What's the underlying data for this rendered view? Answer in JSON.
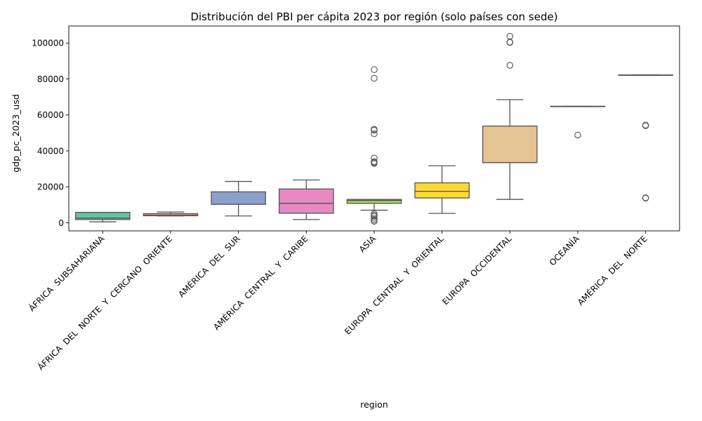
{
  "chart_data": {
    "type": "box",
    "title": "Distribución del PBI per cápita 2023 por región (solo países con sede)",
    "xlabel": "region",
    "ylabel": "gdp_pc_2023_usd",
    "ylim": [
      -4500,
      109500
    ],
    "yticks": [
      0,
      20000,
      40000,
      60000,
      80000,
      100000
    ],
    "ytick_labels": [
      "0",
      "20000",
      "40000",
      "60000",
      "80000",
      "100000"
    ],
    "grid": false,
    "legend": "none",
    "categories": [
      "ÁFRICA  SUBSAHARIANA",
      "ÁFRICA  DEL  NORTE  Y  CERCANO  ORIENTE",
      "AMÉRICA  DEL  SUR",
      "AMÉRICA  CENTRAL  Y  CARIBE",
      "ASIA",
      "EUROPA  CENTRAL  Y  ORIENTAL",
      "EUROPA  OCCIDENTAL",
      "OCEANÍA",
      "AMÉRICA  DEL  NORTE"
    ],
    "boxes": [
      {
        "whisker_low": 500,
        "q1": 1800,
        "median": 2600,
        "q3": 5800,
        "whisker_high": 5800,
        "outliers": [],
        "color": "#66c2a5"
      },
      {
        "whisker_low": 3800,
        "q1": 3900,
        "median": 4200,
        "q3": 5100,
        "whisker_high": 6000,
        "outliers": [],
        "color": "#fc8d62"
      },
      {
        "whisker_low": 3800,
        "q1": 10300,
        "median": 10300,
        "q3": 17200,
        "whisker_high": 23000,
        "outliers": [],
        "color": "#8da0cb"
      },
      {
        "whisker_low": 1800,
        "q1": 5300,
        "median": 10800,
        "q3": 18800,
        "whisker_high": 23800,
        "outliers": [],
        "color": "#e78ac3"
      },
      {
        "whisker_low": 7000,
        "q1": 10800,
        "median": 12400,
        "q3": 13000,
        "whisker_high": 13000,
        "outliers": [
          85200,
          80400,
          52000,
          51500,
          49500,
          36000,
          34000,
          33500,
          33000,
          5000,
          4200,
          3600,
          2500,
          1500,
          800
        ],
        "color": "#a6d854"
      },
      {
        "whisker_low": 5200,
        "q1": 13800,
        "median": 17500,
        "q3": 22200,
        "whisker_high": 31700,
        "outliers": [],
        "color": "#ffd92f"
      },
      {
        "whisker_low": 13000,
        "q1": 33500,
        "median": 33500,
        "q3": 53800,
        "whisker_high": 68500,
        "outliers": [
          103800,
          100500,
          100300,
          87600
        ],
        "color": "#e5c494"
      },
      {
        "whisker_low": 64800,
        "q1": 64800,
        "median": 64800,
        "q3": 64800,
        "whisker_high": 64800,
        "outliers": [
          48800
        ],
        "color": "#b3b3b3"
      },
      {
        "whisker_low": 82200,
        "q1": 82200,
        "median": 82200,
        "q3": 82200,
        "whisker_high": 82200,
        "outliers": [
          54300,
          54000,
          13900,
          13700
        ],
        "color": "#66c2a5"
      }
    ]
  }
}
